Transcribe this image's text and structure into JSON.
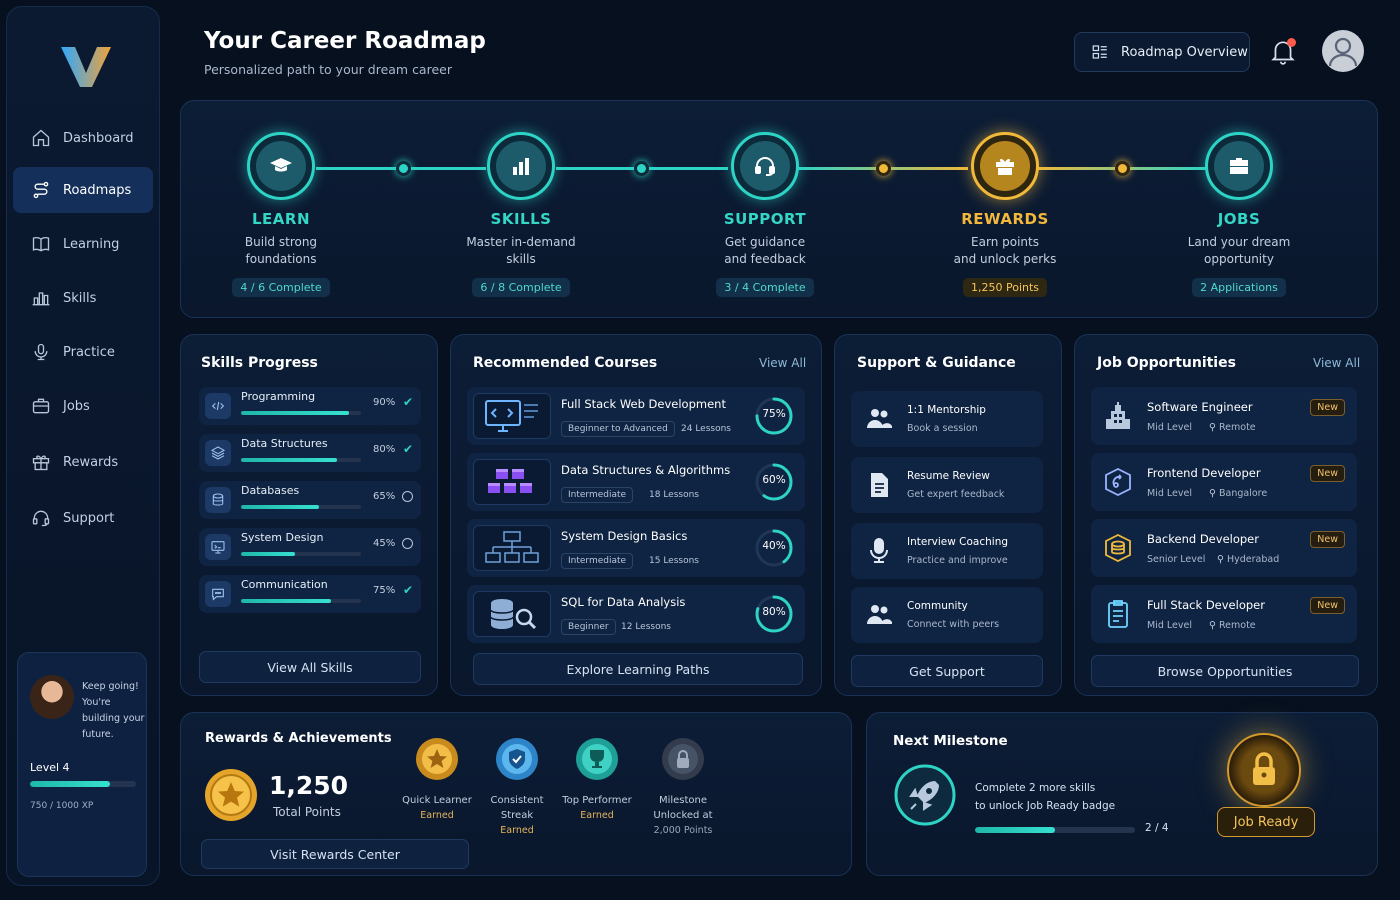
{
  "sidebar": {
    "items": [
      {
        "label": "Dashboard",
        "icon": "home-icon"
      },
      {
        "label": "Roadmaps",
        "icon": "roadmap-icon"
      },
      {
        "label": "Learning",
        "icon": "book-icon"
      },
      {
        "label": "Skills",
        "icon": "bar-chart-icon"
      },
      {
        "label": "Practice",
        "icon": "microphone-icon"
      },
      {
        "label": "Jobs",
        "icon": "briefcase-icon"
      },
      {
        "label": "Rewards",
        "icon": "gift-icon"
      },
      {
        "label": "Support",
        "icon": "headset-icon"
      }
    ],
    "promo": {
      "line1": "Keep going!",
      "line2": "You're building your future.",
      "level": "Level 4",
      "xp_text": "750 / 1000 XP",
      "xp_fraction": 0.75
    }
  },
  "header": {
    "title": "Your Career Roadmap",
    "subtitle": "Personalized path to your dream career",
    "overview_button": "Roadmap Overview"
  },
  "roadmap": [
    {
      "name": "LEARN",
      "desc1": "Build strong",
      "desc2": "foundations",
      "chip": "4 / 6 Complete",
      "icon": "graduation-cap-icon",
      "accent": "#2dd4c5"
    },
    {
      "name": "SKILLS",
      "desc1": "Master in-demand",
      "desc2": "skills",
      "chip": "6 / 8 Complete",
      "icon": "bar-chart-icon",
      "accent": "#2dd4c5"
    },
    {
      "name": "SUPPORT",
      "desc1": "Get guidance",
      "desc2": "and feedback",
      "chip": "3 / 4 Complete",
      "icon": "headset-icon",
      "accent": "#2dd4c5"
    },
    {
      "name": "REWARDS",
      "desc1": "Earn points",
      "desc2": "and unlock perks",
      "chip": "1,250 Points",
      "icon": "gift-icon",
      "accent": "#f1b93a"
    },
    {
      "name": "JOBS",
      "desc1": "Land your dream",
      "desc2": "opportunity",
      "chip": "2 Applications",
      "icon": "briefcase-icon",
      "accent": "#2dd4c5"
    }
  ],
  "skills": {
    "title": "Skills Progress",
    "items": [
      {
        "name": "Programming",
        "pct_label": "90%",
        "value": 0.9,
        "done": true
      },
      {
        "name": "Data Structures",
        "pct_label": "80%",
        "value": 0.8,
        "done": true
      },
      {
        "name": "Databases",
        "pct_label": "65%",
        "value": 0.65,
        "done": false
      },
      {
        "name": "System Design",
        "pct_label": "45%",
        "value": 0.45,
        "done": false
      },
      {
        "name": "Communication",
        "pct_label": "75%",
        "value": 0.75,
        "done": true
      }
    ],
    "button": "View All Skills"
  },
  "courses": {
    "title": "Recommended Courses",
    "view_all": "View All",
    "items": [
      {
        "title": "Full Stack Web Development",
        "level": "Beginner to Advanced",
        "lessons": "24 Lessons",
        "pct_label": "75%",
        "value": 0.75
      },
      {
        "title": "Data Structures & Algorithms",
        "level": "Intermediate",
        "lessons": "18 Lessons",
        "pct_label": "60%",
        "value": 0.6
      },
      {
        "title": "System Design Basics",
        "level": "Intermediate",
        "lessons": "15 Lessons",
        "pct_label": "40%",
        "value": 0.4
      },
      {
        "title": "SQL for Data Analysis",
        "level": "Beginner",
        "lessons": "12 Lessons",
        "pct_label": "80%",
        "value": 0.8
      }
    ],
    "button": "Explore Learning Paths"
  },
  "support": {
    "title": "Support & Guidance",
    "items": [
      {
        "title": "1:1 Mentorship",
        "sub": "Book a session",
        "icon": "people-icon"
      },
      {
        "title": "Resume Review",
        "sub": "Get expert feedback",
        "icon": "document-icon"
      },
      {
        "title": "Interview Coaching",
        "sub": "Practice and improve",
        "icon": "microphone-icon"
      },
      {
        "title": "Community",
        "sub": "Connect with peers",
        "icon": "people-icon"
      }
    ],
    "button": "Get Support"
  },
  "jobs": {
    "title": "Job Opportunities",
    "view_all": "View All",
    "items": [
      {
        "title": "Software Engineer",
        "level": "Mid Level",
        "location": "Remote",
        "badge": "New"
      },
      {
        "title": "Frontend Developer",
        "level": "Mid Level",
        "location": "Bangalore",
        "badge": "New"
      },
      {
        "title": "Backend Developer",
        "level": "Senior Level",
        "location": "Hyderabad",
        "badge": "New"
      },
      {
        "title": "Full Stack Developer",
        "level": "Mid Level",
        "location": "Remote",
        "badge": "New"
      }
    ],
    "button": "Browse Opportunities"
  },
  "rewards": {
    "title": "Rewards & Achievements",
    "points": "1,250",
    "points_label": "Total Points",
    "badges": [
      {
        "name": "Quick Learner",
        "status": "Earned"
      },
      {
        "name": "Consistent Streak",
        "status": "Earned"
      },
      {
        "name": "Top Performer",
        "status": "Earned"
      },
      {
        "name": "Milestone Unlocked at",
        "status": "2,000 Points"
      }
    ],
    "button": "Visit Rewards Center"
  },
  "milestone": {
    "title": "Next Milestone",
    "line1": "Complete 2 more skills",
    "line2": "to unlock Job Ready badge",
    "progress_text": "2 / 4",
    "progress_value": 0.5,
    "badge_label": "Job Ready"
  },
  "colors": {
    "accent": "#2dd4c5",
    "gold": "#f1b93a",
    "background": "#06101f"
  }
}
